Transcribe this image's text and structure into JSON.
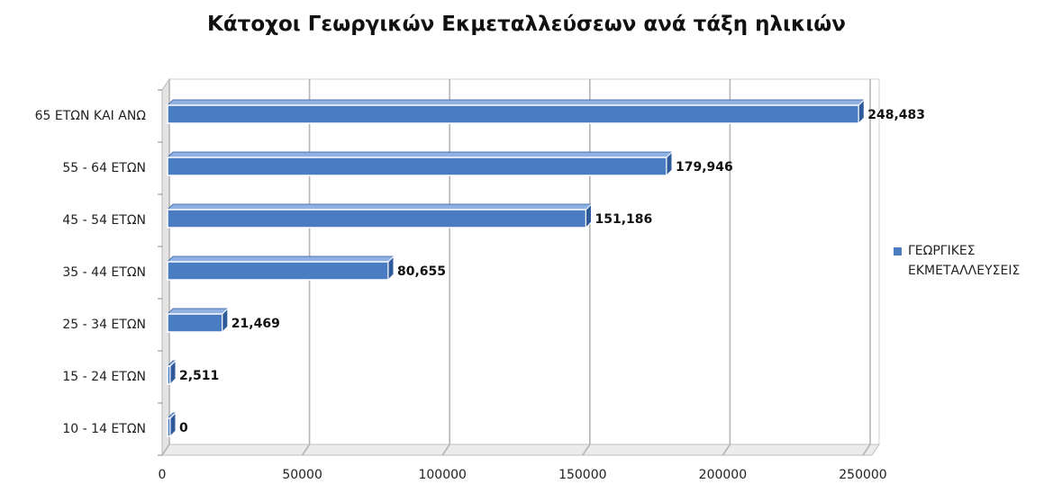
{
  "chart_data": {
    "type": "bar",
    "orientation": "horizontal",
    "title": "Κάτοχοι Γεωργικών Εκμεταλλεύσεων ανά τάξη ηλικιών",
    "categories": [
      "65 ΕΤΩΝ ΚΑΙ ΑΝΩ",
      "55 - 64 ΕΤΩΝ",
      "45 - 54 ΕΤΩΝ",
      "35 - 44 ΕΤΩΝ",
      "25 - 34 ΕΤΩΝ",
      "15 - 24 ΕΤΩΝ",
      "10 - 14  ΕΤΩΝ"
    ],
    "series": [
      {
        "name": "ΓΕΩΡΓΙΚΕΣ ΕΚΜΕΤΑΛΛΕΥΣΕΙΣ",
        "values": [
          248483,
          179946,
          151186,
          80655,
          21469,
          2511,
          0
        ],
        "data_labels": [
          "248,483",
          "179,946",
          "151,186",
          "80,655",
          "21,469",
          "2,511",
          "0"
        ],
        "color": "#4a7cc2"
      }
    ],
    "x_ticks": [
      "0",
      "50000",
      "100000",
      "150000",
      "200000",
      "250000"
    ],
    "xlim": [
      0,
      250000
    ],
    "grid": true,
    "style": "3d",
    "legend_position": "right"
  }
}
